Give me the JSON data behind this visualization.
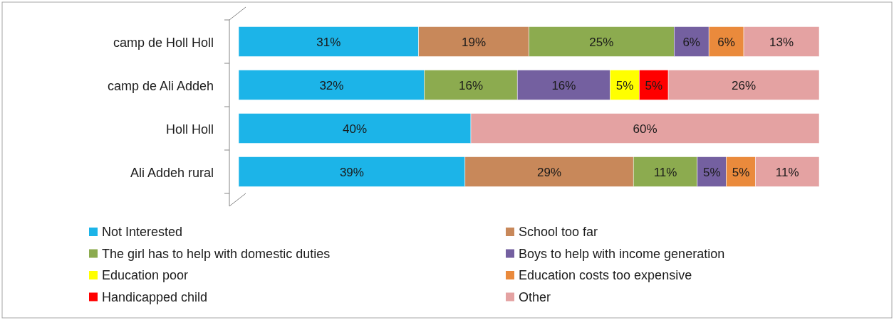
{
  "chart_data": {
    "type": "bar",
    "orientation": "horizontal",
    "stacked": true,
    "categories": [
      "camp de Holl Holl",
      "camp de Ali Addeh",
      "Holl Holl",
      "Ali Addeh rural"
    ],
    "series": [
      {
        "name": "Not Interested",
        "color": "#1cb4e8",
        "values": [
          31,
          32,
          40,
          39
        ],
        "value_labels": [
          "31%",
          "32%",
          "40%",
          "39%"
        ]
      },
      {
        "name": "School too far",
        "color": "#c8885a",
        "values": [
          19,
          null,
          null,
          29
        ],
        "value_labels": [
          "19%",
          null,
          null,
          "29%"
        ]
      },
      {
        "name": "The girl has to help with domestic duties",
        "color": "#8cab4f",
        "values": [
          25,
          16,
          null,
          11
        ],
        "value_labels": [
          "25%",
          "16%",
          null,
          "11%"
        ]
      },
      {
        "name": "Boys to help with income generation",
        "color": "#7460a0",
        "values": [
          6,
          16,
          null,
          5
        ],
        "value_labels": [
          "6%",
          "16%",
          null,
          "5%"
        ]
      },
      {
        "name": "Education poor",
        "color": "#ffff00",
        "values": [
          null,
          5,
          null,
          null
        ],
        "value_labels": [
          null,
          "5%",
          null,
          null
        ]
      },
      {
        "name": "Education costs too expensive",
        "color": "#ea8a3c",
        "values": [
          6,
          null,
          null,
          5
        ],
        "value_labels": [
          "6%",
          null,
          null,
          "5%"
        ]
      },
      {
        "name": "Handicapped child",
        "color": "#ff0000",
        "values": [
          null,
          5,
          null,
          null
        ],
        "value_labels": [
          null,
          "5%",
          null,
          null
        ]
      },
      {
        "name": "Other",
        "color": "#e4a2a2",
        "values": [
          13,
          26,
          60,
          11
        ],
        "value_labels": [
          "13%",
          "26%",
          "60%",
          "11%"
        ]
      }
    ],
    "legend": "bottom"
  }
}
